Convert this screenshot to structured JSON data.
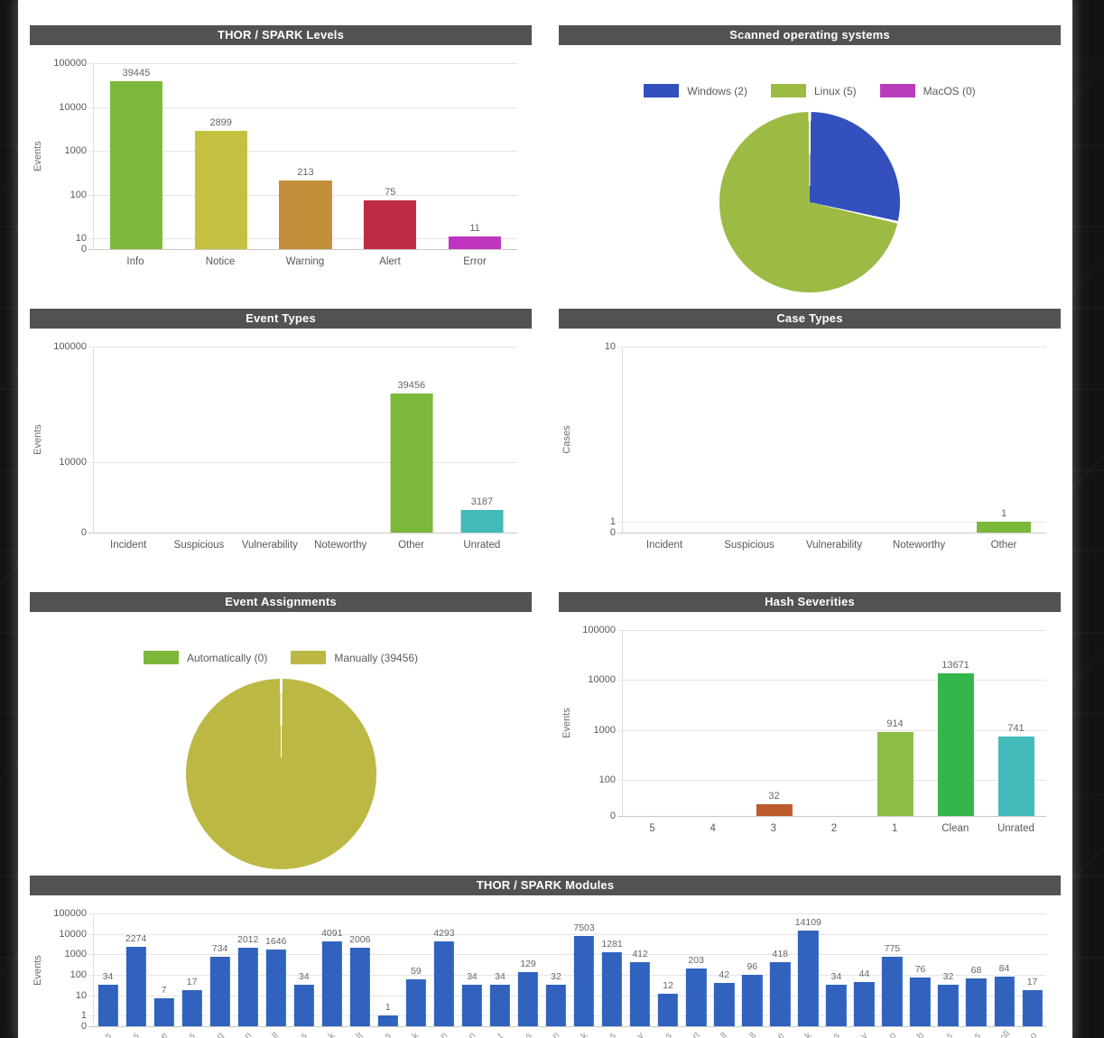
{
  "theme": {
    "page_background": "#131313",
    "sheet_background": "#ffffff",
    "panel_header_background": "#525254",
    "panel_header_text": "#ffffff",
    "grid_color": "#e5e5e5",
    "axis_text_color": "#58585b",
    "value_label_color": "#666666"
  },
  "chart_data": [
    {
      "id": "levels",
      "type": "bar",
      "title": "THOR / SPARK Levels",
      "xlabel": "",
      "ylabel": "Events",
      "categories": [
        "Info",
        "Notice",
        "Warning",
        "Alert",
        "Error"
      ],
      "values": [
        39445,
        2899,
        213,
        75,
        11
      ],
      "bar_colors": [
        "#7cb83a",
        "#c3c13f",
        "#c28f3a",
        "#bf2b45",
        "#bf35bf"
      ],
      "yticks": [
        "100000",
        "10000",
        "1000",
        "100",
        "10",
        "0"
      ],
      "scale": "log",
      "grid": true,
      "zero_gap": 0.058,
      "bar_width_pct": 62
    },
    {
      "id": "os",
      "type": "pie",
      "title": "Scanned operating systems",
      "legend_position": "top",
      "diameter": 200,
      "slices": [
        {
          "label": "Windows (2)",
          "name": "Windows",
          "value": 2,
          "color": "#3350be"
        },
        {
          "label": "Linux (5)",
          "name": "Linux",
          "value": 5,
          "color": "#9dbb44"
        },
        {
          "label": "MacOS (0)",
          "name": "MacOS",
          "value": 0,
          "color": "#b93dbb"
        }
      ]
    },
    {
      "id": "event-types",
      "type": "bar",
      "title": "Event Types",
      "xlabel": "",
      "ylabel": "Events",
      "categories": [
        "Incident",
        "Suspicious",
        "Vulnerability",
        "Noteworthy",
        "Other",
        "Unrated"
      ],
      "values": [
        0,
        0,
        0,
        0,
        39456,
        3187
      ],
      "bar_colors": [
        "#7cb83a",
        "#7cb83a",
        "#7cb83a",
        "#7cb83a",
        "#7cb83a",
        "#43b9b9"
      ],
      "yticks": [
        "100000",
        "10000",
        "0"
      ],
      "scale": "log",
      "grid": true,
      "zero_gap": 0.378,
      "bar_width_pct": 60
    },
    {
      "id": "case-types",
      "type": "bar",
      "title": "Case Types",
      "xlabel": "",
      "ylabel": "Cases",
      "categories": [
        "Incident",
        "Suspicious",
        "Vulnerability",
        "Noteworthy",
        "Other"
      ],
      "values": [
        0,
        0,
        0,
        0,
        1
      ],
      "bar_colors": [
        "#7cb83a",
        "#7cb83a",
        "#7cb83a",
        "#7cb83a",
        "#7cb83a"
      ],
      "yticks": [
        "10",
        "1",
        "0"
      ],
      "scale": "log",
      "grid": true,
      "zero_gap": 0.058,
      "bar_width_pct": 64
    },
    {
      "id": "assignments",
      "type": "pie",
      "title": "Event Assignments",
      "legend_position": "top",
      "diameter": 211,
      "slices": [
        {
          "label": "Automatically (0)",
          "name": "Automatically",
          "value": 0,
          "color": "#7cb83a"
        },
        {
          "label": "Manually (39456)",
          "name": "Manually",
          "value": 39456,
          "color": "#bcb844"
        }
      ]
    },
    {
      "id": "hash-severities",
      "type": "bar",
      "title": "Hash Severities",
      "xlabel": "",
      "ylabel": "Events",
      "categories": [
        "5",
        "4",
        "3",
        "2",
        "1",
        "Clean",
        "Unrated"
      ],
      "values": [
        0,
        0,
        32,
        0,
        914,
        13671,
        741
      ],
      "bar_colors": [
        "#bc5b2c",
        "#bc5b2c",
        "#bc5b2c",
        "#bc5b2c",
        "#8cbd46",
        "#33b54a",
        "#43b9b9"
      ],
      "yticks": [
        "100000",
        "10000",
        "1000",
        "100",
        "0"
      ],
      "scale": "log",
      "grid": true,
      "zero_gap": 0.193,
      "bar_width_pct": 60
    },
    {
      "id": "modules",
      "type": "bar",
      "title": "THOR / SPARK Modules",
      "xlabel": "",
      "ylabel": "Events",
      "categories": [
        "s",
        "s",
        "e",
        "s",
        "g",
        "n",
        "ll",
        "s",
        "k",
        "lt",
        "s",
        "k",
        "n",
        "n",
        "t",
        "s",
        "n",
        "k",
        "s",
        "y",
        "s",
        "rt",
        "ll",
        "ll",
        "e",
        "k",
        "s",
        "y",
        "o",
        "b",
        "s",
        "s",
        "oll",
        "o"
      ],
      "xlabels_clipped": true,
      "xlabel_rotation": -45,
      "values": [
        34,
        2274,
        7,
        17,
        734,
        2012,
        1646,
        34,
        4091,
        2006,
        1,
        59,
        4293,
        34,
        34,
        129,
        32,
        7503,
        1281,
        412,
        12,
        203,
        42,
        96,
        418,
        14109,
        34,
        44,
        775,
        76,
        32,
        68,
        84,
        17
      ],
      "bar_color": "#3062be",
      "yticks": [
        "100000",
        "10000",
        "1000",
        "100",
        "10",
        "1",
        "0"
      ],
      "scale": "log",
      "grid": true,
      "zero_gap": 0.094,
      "bar_width_pct": 72,
      "small_labels": true
    }
  ]
}
